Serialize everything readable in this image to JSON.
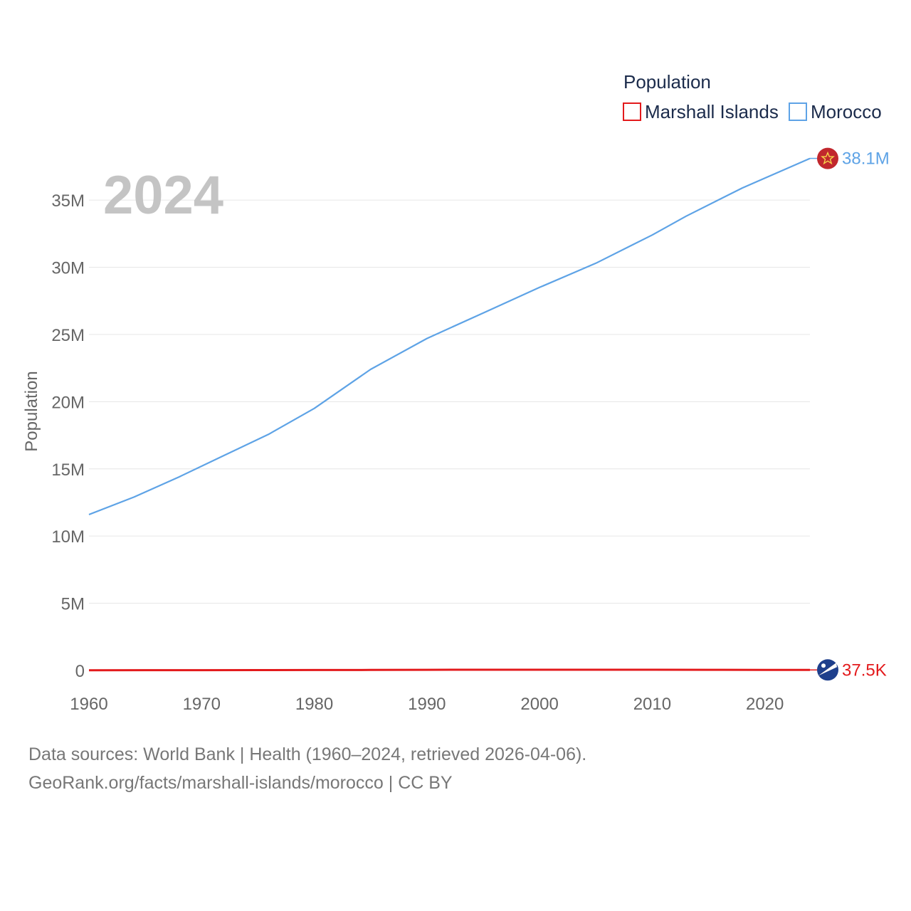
{
  "chart_data": {
    "type": "line",
    "current_year": "2024",
    "legend_title": "Population",
    "ylabel": "Population",
    "xlabel": "",
    "xlim": [
      1960,
      2024
    ],
    "ylim": [
      0,
      38500000
    ],
    "x_ticks": [
      1960,
      1970,
      1980,
      1990,
      2000,
      2010,
      2020
    ],
    "y_ticks": [
      {
        "value": 0,
        "label": "0"
      },
      {
        "value": 5000000,
        "label": "5M"
      },
      {
        "value": 10000000,
        "label": "10M"
      },
      {
        "value": 15000000,
        "label": "15M"
      },
      {
        "value": 20000000,
        "label": "20M"
      },
      {
        "value": 25000000,
        "label": "25M"
      },
      {
        "value": 30000000,
        "label": "30M"
      },
      {
        "value": 35000000,
        "label": "35M"
      }
    ],
    "grid": true,
    "series": [
      {
        "name": "Marshall Islands",
        "color": "#e31a1c",
        "flag_icon": "marshall-islands-flag-icon",
        "end_label": "37.5K",
        "x": [
          1960,
          1965,
          1970,
          1975,
          1980,
          1985,
          1990,
          1995,
          2000,
          2005,
          2010,
          2015,
          2020,
          2024
        ],
        "values": [
          14900,
          18600,
          22000,
          26400,
          31000,
          38000,
          47000,
          51000,
          52000,
          52500,
          53000,
          50000,
          43000,
          37500
        ]
      },
      {
        "name": "Morocco",
        "color": "#5ea3e6",
        "flag_icon": "morocco-flag-icon",
        "end_label": "38.1M",
        "x": [
          1960,
          1964,
          1968,
          1972,
          1976,
          1980,
          1985,
          1990,
          1995,
          2000,
          2005,
          2010,
          2013,
          2018,
          2024
        ],
        "values": [
          11600000,
          12900000,
          14400000,
          16000000,
          17600000,
          19500000,
          22400000,
          24700000,
          26600000,
          28500000,
          30300000,
          32400000,
          33800000,
          35900000,
          38100000
        ]
      }
    ]
  },
  "footer": {
    "line1": "Data sources: World Bank | Health (1960–2024, retrieved 2026-04-06).",
    "line2": "GeoRank.org/facts/marshall-islands/morocco | CC BY"
  }
}
